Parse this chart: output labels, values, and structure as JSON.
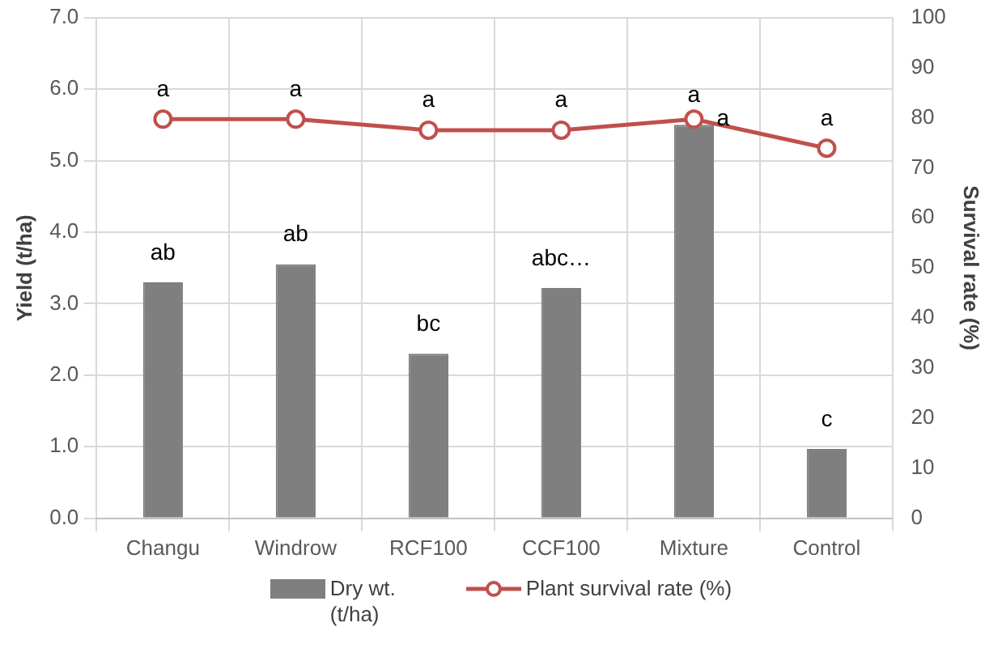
{
  "chart_data": {
    "type": "bar",
    "categories": [
      "Changu",
      "Windrow",
      "RCF100",
      "CCF100",
      "Mixture",
      "Control"
    ],
    "series": [
      {
        "name": "Dry wt. (t/ha)",
        "color": "#7f7f7f",
        "values": [
          3.3,
          3.55,
          2.3,
          3.22,
          5.5,
          0.97
        ]
      },
      {
        "name": "Plant survival rate (%)",
        "type": "line",
        "axis": "y2",
        "color": "#c0504d",
        "values": [
          79.7,
          79.7,
          77.5,
          77.5,
          79.7,
          73.9
        ]
      }
    ],
    "ylabel": "Yield (t/ha)",
    "y2label": "Survival rate (%)",
    "ylim": [
      0,
      7
    ],
    "yticks": [
      {
        "value": 0,
        "label": "0.0"
      },
      {
        "value": 1,
        "label": "1.0"
      },
      {
        "value": 2,
        "label": "2.0"
      },
      {
        "value": 3,
        "label": "3.0"
      },
      {
        "value": 4,
        "label": "4.0"
      },
      {
        "value": 5,
        "label": "5.0"
      },
      {
        "value": 6,
        "label": "6.0"
      },
      {
        "value": 7,
        "label": "7.0"
      }
    ],
    "y2lim": [
      0,
      100
    ],
    "y2ticks": [
      0,
      10,
      20,
      30,
      40,
      50,
      60,
      70,
      80,
      90,
      100
    ],
    "grid": true,
    "legend": "bottom",
    "marker": "circle",
    "annotations": [
      {
        "text": "a",
        "x": "Changu",
        "y": 5.58
      },
      {
        "text": "a",
        "x": "Windrow",
        "y": 5.58
      },
      {
        "text": "a",
        "x": "RCF100",
        "y": 5.43
      },
      {
        "text": "a",
        "x": "CCF100",
        "y": 5.43
      },
      {
        "text": "a",
        "x": "Mixture",
        "y": 5.5
      },
      {
        "text": "a",
        "x": "Control",
        "y": 5.17
      },
      {
        "text": "ab",
        "x": "Changu",
        "y": 3.3
      },
      {
        "text": "ab",
        "x": "Windrow",
        "y": 3.55
      },
      {
        "text": "bc",
        "x": "RCF100",
        "y": 2.3
      },
      {
        "text": "abc…",
        "x": "CCF100",
        "y": 3.22
      },
      {
        "text": "c",
        "x": "Control",
        "y": 0.97
      },
      {
        "text": "a",
        "x": "Mixture",
        "y": 5.58
      }
    ]
  }
}
